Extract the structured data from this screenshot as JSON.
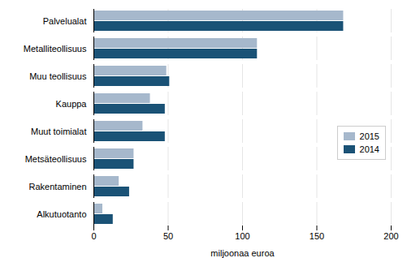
{
  "chart_data": {
    "type": "bar",
    "orientation": "horizontal",
    "categories": [
      "Palvelualat",
      "Metalliteollisuus",
      "Muu teollisuus",
      "Kauppa",
      "Muut toimialat",
      "Metsäteollisuus",
      "Rakentaminen",
      "Alkutuotanto"
    ],
    "series": [
      {
        "name": "2015",
        "color": "#a6b8cc",
        "values": [
          168,
          110,
          49,
          38,
          33,
          27,
          17,
          6
        ]
      },
      {
        "name": "2014",
        "color": "#1a5276",
        "values": [
          168,
          110,
          51,
          48,
          48,
          27,
          24,
          13
        ]
      }
    ],
    "xlabel": "miljoonaa euroa",
    "xlim": [
      0,
      200
    ],
    "xticks": [
      0,
      50,
      100,
      150,
      200
    ],
    "grid": true,
    "legend": "right"
  }
}
